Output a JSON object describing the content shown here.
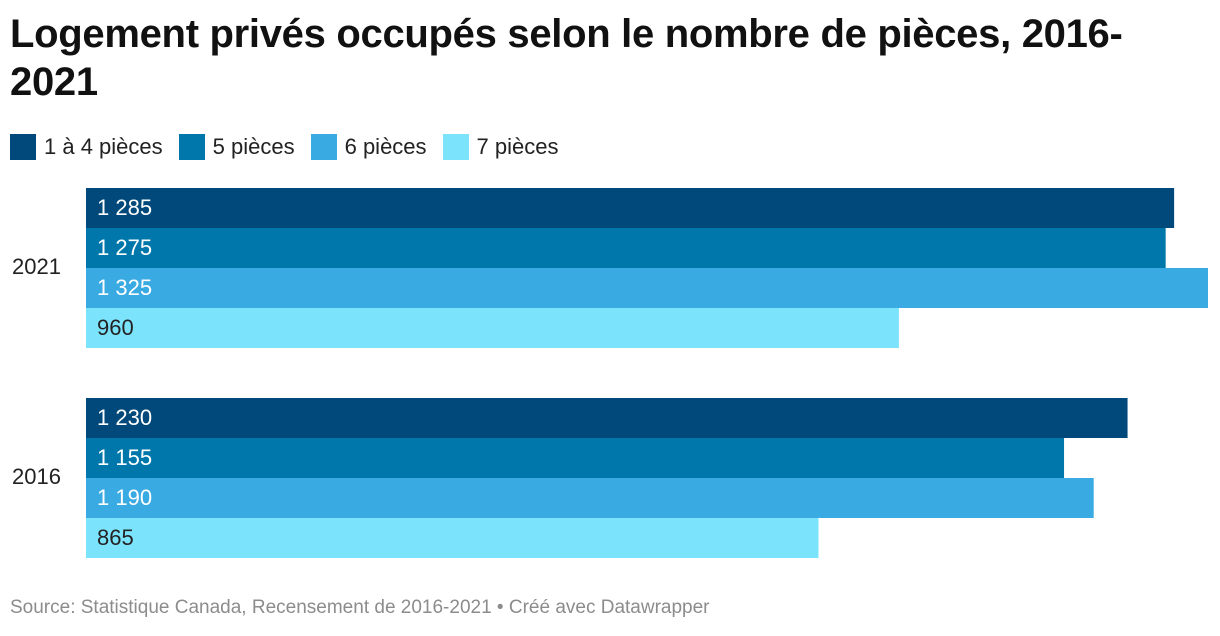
{
  "chart_data": {
    "type": "bar",
    "orientation": "horizontal",
    "title": "Logement privés occupés selon le nombre de pièces, 2016-2021",
    "categories": [
      "2021",
      "2016"
    ],
    "series": [
      {
        "name": "1 à 4 pièces",
        "color": "#00497a",
        "values": [
          1285,
          1230
        ],
        "labels": [
          "1 285",
          "1 230"
        ]
      },
      {
        "name": "5 pièces",
        "color": "#0077aa",
        "values": [
          1275,
          1155
        ],
        "labels": [
          "1 275",
          "1 155"
        ]
      },
      {
        "name": "6 pièces",
        "color": "#3aaae2",
        "values": [
          1325,
          1190
        ],
        "labels": [
          "1 325",
          "1 190"
        ]
      },
      {
        "name": "7 pièces",
        "color": "#7ce3fd",
        "values": [
          960,
          865
        ],
        "labels": [
          "960",
          "865"
        ]
      }
    ],
    "xlim": [
      0,
      1325
    ],
    "grid": false,
    "legend_position": "top-left",
    "source": "Source: Statistique Canada, Recensement de 2016-2021 • Créé avec Datawrapper"
  }
}
